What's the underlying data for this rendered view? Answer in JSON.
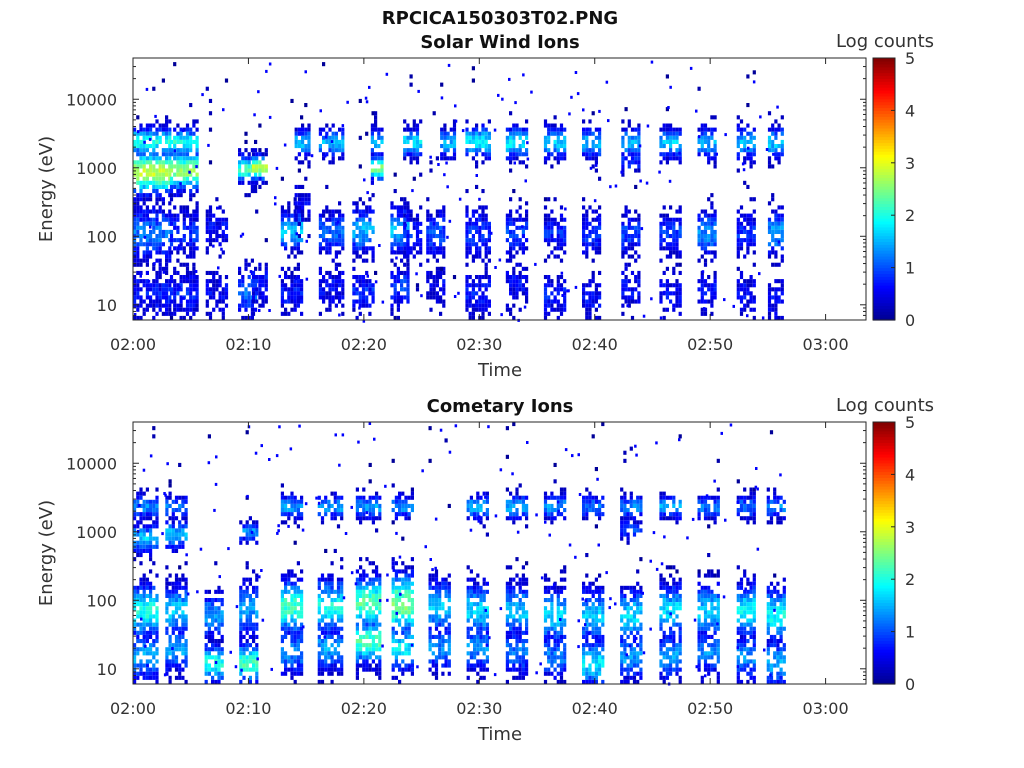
{
  "figure_title": "RPCICA150303T02.PNG",
  "colormap": [
    "#00008f",
    "#0000ff",
    "#007fff",
    "#00ffff",
    "#7fff7f",
    "#ffff00",
    "#ff7f00",
    "#ff0000",
    "#7f0000"
  ],
  "chart_data": [
    {
      "type": "heatmap",
      "title": "Solar Wind Ions",
      "xlabel": "Time",
      "ylabel": "Energy (eV)",
      "x_ticks": [
        "02:00",
        "02:10",
        "02:20",
        "02:30",
        "02:40",
        "02:50",
        "03:00"
      ],
      "y_ticks": [
        "10",
        "100",
        "1000",
        "10000"
      ],
      "y_scale": "log",
      "y_range_eV": [
        6,
        40000
      ],
      "x_range_min": [
        0,
        63.5
      ],
      "colorbar_label": "Log counts",
      "colorbar_ticks": [
        "0",
        "1",
        "2",
        "3",
        "4",
        "5"
      ],
      "colorbar_range": [
        0,
        5
      ],
      "sweeps": [
        {
          "t": 0.0,
          "w": 3.3,
          "bands": [
            {
              "e": 2400,
              "lv": 2.0,
              "s": 0.18
            },
            {
              "e": 850,
              "lv": 2.8,
              "s": 0.28
            },
            {
              "e": 110,
              "lv": 1.2,
              "s": 0.35
            },
            {
              "e": 15,
              "lv": 0.7,
              "s": 0.35
            }
          ]
        },
        {
          "t": 3.2,
          "w": 2.3,
          "bands": [
            {
              "e": 2300,
              "lv": 2.0,
              "s": 0.18
            },
            {
              "e": 900,
              "lv": 2.6,
              "s": 0.25
            },
            {
              "e": 110,
              "lv": 0.9,
              "s": 0.3
            },
            {
              "e": 15,
              "lv": 0.8,
              "s": 0.3
            }
          ]
        },
        {
          "t": 6.3,
          "w": 1.8,
          "bands": [
            {
              "e": 130,
              "lv": 0.6,
              "s": 0.3
            },
            {
              "e": 15,
              "lv": 0.6,
              "s": 0.3
            }
          ]
        },
        {
          "t": 9.1,
          "w": 1.6,
          "bands": [
            {
              "e": 950,
              "lv": 2.2,
              "s": 0.18
            },
            {
              "e": 15,
              "lv": 1.2,
              "s": 0.3
            }
          ]
        },
        {
          "t": 10.3,
          "w": 1.3,
          "bands": [
            {
              "e": 1000,
              "lv": 2.9,
              "s": 0.15
            },
            {
              "e": 20,
              "lv": 0.7,
              "s": 0.3
            }
          ]
        },
        {
          "t": 12.8,
          "w": 1.9,
          "bands": [
            {
              "e": 120,
              "lv": 1.6,
              "s": 0.25
            },
            {
              "e": 15,
              "lv": 0.7,
              "s": 0.3
            }
          ]
        },
        {
          "t": 14.0,
          "w": 1.2,
          "bands": [
            {
              "e": 2300,
              "lv": 1.6,
              "s": 0.18
            },
            {
              "e": 300,
              "lv": 0.5,
              "s": 0.3
            }
          ]
        },
        {
          "t": 16.1,
          "w": 2.0,
          "bands": [
            {
              "e": 2300,
              "lv": 1.5,
              "s": 0.18
            },
            {
              "e": 110,
              "lv": 1.1,
              "s": 0.3
            },
            {
              "e": 18,
              "lv": 0.6,
              "s": 0.3
            }
          ]
        },
        {
          "t": 19.0,
          "w": 1.8,
          "bands": [
            {
              "e": 120,
              "lv": 1.5,
              "s": 0.28
            },
            {
              "e": 15,
              "lv": 0.8,
              "s": 0.3
            }
          ]
        },
        {
          "t": 20.6,
          "w": 1.0,
          "bands": [
            {
              "e": 2300,
              "lv": 1.6,
              "s": 0.18
            },
            {
              "e": 1000,
              "lv": 2.6,
              "s": 0.15
            }
          ]
        },
        {
          "t": 22.3,
          "w": 1.6,
          "bands": [
            {
              "e": 120,
              "lv": 1.6,
              "s": 0.28
            },
            {
              "e": 18,
              "lv": 0.9,
              "s": 0.3
            }
          ]
        },
        {
          "t": 23.4,
          "w": 1.4,
          "bands": [
            {
              "e": 2300,
              "lv": 1.8,
              "s": 0.18
            },
            {
              "e": 100,
              "lv": 0.8,
              "s": 0.3
            }
          ]
        },
        {
          "t": 25.4,
          "w": 1.6,
          "bands": [
            {
              "e": 110,
              "lv": 1.0,
              "s": 0.3
            },
            {
              "e": 20,
              "lv": 0.6,
              "s": 0.3
            }
          ]
        },
        {
          "t": 26.6,
          "w": 1.2,
          "bands": [
            {
              "e": 2300,
              "lv": 1.5,
              "s": 0.18
            }
          ]
        },
        {
          "t": 28.8,
          "w": 2.0,
          "bands": [
            {
              "e": 2400,
              "lv": 1.8,
              "s": 0.2
            },
            {
              "e": 110,
              "lv": 0.8,
              "s": 0.35
            },
            {
              "e": 15,
              "lv": 0.7,
              "s": 0.3
            }
          ]
        },
        {
          "t": 32.3,
          "w": 1.8,
          "bands": [
            {
              "e": 2300,
              "lv": 1.8,
              "s": 0.2
            },
            {
              "e": 110,
              "lv": 0.9,
              "s": 0.3
            },
            {
              "e": 20,
              "lv": 0.6,
              "s": 0.3
            }
          ]
        },
        {
          "t": 35.6,
          "w": 1.8,
          "bands": [
            {
              "e": 2300,
              "lv": 1.6,
              "s": 0.2
            },
            {
              "e": 110,
              "lv": 0.8,
              "s": 0.3
            },
            {
              "e": 14,
              "lv": 0.7,
              "s": 0.3
            }
          ]
        },
        {
          "t": 38.9,
          "w": 1.6,
          "bands": [
            {
              "e": 2300,
              "lv": 1.5,
              "s": 0.2
            },
            {
              "e": 110,
              "lv": 0.8,
              "s": 0.3
            },
            {
              "e": 12,
              "lv": 0.6,
              "s": 0.3
            }
          ]
        },
        {
          "t": 42.3,
          "w": 1.6,
          "bands": [
            {
              "e": 2300,
              "lv": 1.5,
              "s": 0.2
            },
            {
              "e": 1200,
              "lv": 0.8,
              "s": 0.15
            },
            {
              "e": 110,
              "lv": 0.9,
              "s": 0.3
            },
            {
              "e": 18,
              "lv": 0.6,
              "s": 0.3
            }
          ]
        },
        {
          "t": 45.6,
          "w": 1.7,
          "bands": [
            {
              "e": 2300,
              "lv": 1.6,
              "s": 0.2
            },
            {
              "e": 110,
              "lv": 0.9,
              "s": 0.3
            },
            {
              "e": 14,
              "lv": 0.6,
              "s": 0.3
            }
          ]
        },
        {
          "t": 48.9,
          "w": 1.6,
          "bands": [
            {
              "e": 2300,
              "lv": 1.5,
              "s": 0.2
            },
            {
              "e": 110,
              "lv": 1.3,
              "s": 0.3
            },
            {
              "e": 16,
              "lv": 0.6,
              "s": 0.3
            }
          ]
        },
        {
          "t": 52.3,
          "w": 1.6,
          "bands": [
            {
              "e": 2300,
              "lv": 1.5,
              "s": 0.2
            },
            {
              "e": 110,
              "lv": 0.8,
              "s": 0.3
            },
            {
              "e": 15,
              "lv": 0.6,
              "s": 0.3
            }
          ]
        },
        {
          "t": 55.0,
          "w": 1.2,
          "bands": [
            {
              "e": 2300,
              "lv": 1.6,
              "s": 0.2
            },
            {
              "e": 110,
              "lv": 1.4,
              "s": 0.3
            },
            {
              "e": 12,
              "lv": 0.6,
              "s": 0.3
            }
          ]
        }
      ]
    },
    {
      "type": "heatmap",
      "title": "Cometary Ions",
      "xlabel": "Time",
      "ylabel": "Energy (eV)",
      "x_ticks": [
        "02:00",
        "02:10",
        "02:20",
        "02:30",
        "02:40",
        "02:50",
        "03:00"
      ],
      "y_ticks": [
        "10",
        "100",
        "1000",
        "10000"
      ],
      "y_scale": "log",
      "y_range_eV": [
        6,
        40000
      ],
      "x_range_min": [
        0,
        63.5
      ],
      "colorbar_label": "Log counts",
      "colorbar_ticks": [
        "0",
        "1",
        "2",
        "3",
        "4",
        "5"
      ],
      "colorbar_range": [
        0,
        5
      ],
      "sweeps": [
        {
          "t": 0.0,
          "w": 2.0,
          "bands": [
            {
              "e": 2300,
              "lv": 1.3,
              "s": 0.15
            },
            {
              "e": 800,
              "lv": 1.6,
              "s": 0.18
            },
            {
              "e": 70,
              "lv": 2.0,
              "s": 0.35
            },
            {
              "e": 15,
              "lv": 1.5,
              "s": 0.3
            }
          ]
        },
        {
          "t": 2.8,
          "w": 1.8,
          "bands": [
            {
              "e": 2300,
              "lv": 1.2,
              "s": 0.15
            },
            {
              "e": 900,
              "lv": 1.6,
              "s": 0.18
            },
            {
              "e": 70,
              "lv": 1.6,
              "s": 0.35
            },
            {
              "e": 20,
              "lv": 1.5,
              "s": 0.3
            }
          ]
        },
        {
          "t": 6.2,
          "w": 1.4,
          "bands": [
            {
              "e": 60,
              "lv": 1.4,
              "s": 0.3
            },
            {
              "e": 12,
              "lv": 2.0,
              "s": 0.25
            }
          ]
        },
        {
          "t": 9.2,
          "w": 1.6,
          "bands": [
            {
              "e": 1000,
              "lv": 1.4,
              "s": 0.12
            },
            {
              "e": 70,
              "lv": 1.4,
              "s": 0.35
            },
            {
              "e": 12,
              "lv": 2.2,
              "s": 0.25
            }
          ]
        },
        {
          "t": 12.8,
          "w": 1.8,
          "bands": [
            {
              "e": 2300,
              "lv": 1.4,
              "s": 0.15
            },
            {
              "e": 80,
              "lv": 2.2,
              "s": 0.35
            },
            {
              "e": 18,
              "lv": 1.3,
              "s": 0.3
            }
          ]
        },
        {
          "t": 16.0,
          "w": 2.0,
          "bands": [
            {
              "e": 2300,
              "lv": 1.4,
              "s": 0.15
            },
            {
              "e": 80,
              "lv": 2.0,
              "s": 0.35
            },
            {
              "e": 20,
              "lv": 1.4,
              "s": 0.3
            }
          ]
        },
        {
          "t": 19.3,
          "w": 2.0,
          "bands": [
            {
              "e": 2300,
              "lv": 1.4,
              "s": 0.15
            },
            {
              "e": 90,
              "lv": 2.3,
              "s": 0.35
            },
            {
              "e": 25,
              "lv": 2.2,
              "s": 0.3
            }
          ]
        },
        {
          "t": 22.4,
          "w": 1.8,
          "bands": [
            {
              "e": 2300,
              "lv": 1.3,
              "s": 0.15
            },
            {
              "e": 90,
              "lv": 2.5,
              "s": 0.4
            },
            {
              "e": 20,
              "lv": 1.8,
              "s": 0.3
            }
          ]
        },
        {
          "t": 25.6,
          "w": 1.8,
          "bands": [
            {
              "e": 80,
              "lv": 1.6,
              "s": 0.35
            },
            {
              "e": 20,
              "lv": 1.3,
              "s": 0.3
            }
          ]
        },
        {
          "t": 28.9,
          "w": 1.8,
          "bands": [
            {
              "e": 2300,
              "lv": 1.5,
              "s": 0.15
            },
            {
              "e": 70,
              "lv": 1.7,
              "s": 0.35
            },
            {
              "e": 20,
              "lv": 1.3,
              "s": 0.3
            }
          ]
        },
        {
          "t": 32.3,
          "w": 1.8,
          "bands": [
            {
              "e": 2300,
              "lv": 1.5,
              "s": 0.15
            },
            {
              "e": 70,
              "lv": 1.6,
              "s": 0.35
            },
            {
              "e": 18,
              "lv": 1.2,
              "s": 0.3
            }
          ]
        },
        {
          "t": 35.6,
          "w": 1.8,
          "bands": [
            {
              "e": 2300,
              "lv": 1.4,
              "s": 0.15
            },
            {
              "e": 60,
              "lv": 1.7,
              "s": 0.35
            },
            {
              "e": 15,
              "lv": 1.2,
              "s": 0.3
            }
          ]
        },
        {
          "t": 38.9,
          "w": 1.8,
          "bands": [
            {
              "e": 2300,
              "lv": 1.2,
              "s": 0.15
            },
            {
              "e": 60,
              "lv": 1.6,
              "s": 0.35
            },
            {
              "e": 12,
              "lv": 1.8,
              "s": 0.3
            }
          ]
        },
        {
          "t": 42.2,
          "w": 1.8,
          "bands": [
            {
              "e": 2300,
              "lv": 1.3,
              "s": 0.15
            },
            {
              "e": 1100,
              "lv": 1.0,
              "s": 0.12
            },
            {
              "e": 60,
              "lv": 1.7,
              "s": 0.35
            },
            {
              "e": 15,
              "lv": 1.4,
              "s": 0.3
            }
          ]
        },
        {
          "t": 45.6,
          "w": 1.8,
          "bands": [
            {
              "e": 2300,
              "lv": 1.4,
              "s": 0.15
            },
            {
              "e": 70,
              "lv": 1.7,
              "s": 0.35
            },
            {
              "e": 15,
              "lv": 1.4,
              "s": 0.3
            }
          ]
        },
        {
          "t": 48.9,
          "w": 1.8,
          "bands": [
            {
              "e": 2300,
              "lv": 1.2,
              "s": 0.15
            },
            {
              "e": 70,
              "lv": 1.6,
              "s": 0.35
            },
            {
              "e": 18,
              "lv": 1.3,
              "s": 0.3
            }
          ]
        },
        {
          "t": 52.3,
          "w": 1.6,
          "bands": [
            {
              "e": 2300,
              "lv": 1.2,
              "s": 0.15
            },
            {
              "e": 70,
              "lv": 1.8,
              "s": 0.35
            },
            {
              "e": 15,
              "lv": 1.3,
              "s": 0.3
            }
          ]
        },
        {
          "t": 54.9,
          "w": 1.4,
          "bands": [
            {
              "e": 2300,
              "lv": 1.3,
              "s": 0.15
            },
            {
              "e": 60,
              "lv": 1.9,
              "s": 0.35
            },
            {
              "e": 12,
              "lv": 1.5,
              "s": 0.3
            }
          ]
        }
      ]
    }
  ]
}
